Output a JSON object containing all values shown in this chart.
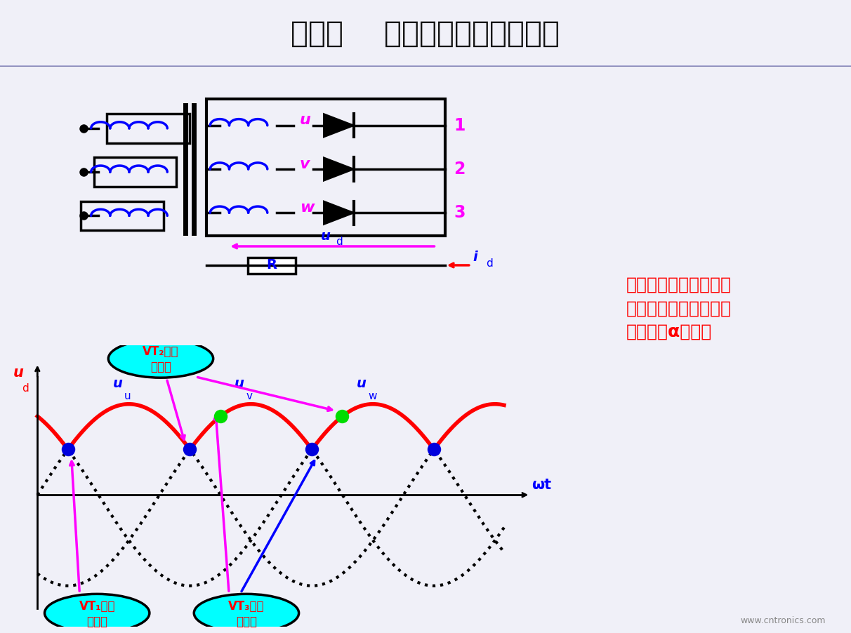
{
  "title": "第一节    三相半波可控整流电路",
  "bg_color": "#f0f0f8",
  "title_color": "#1a1a1a",
  "box_text_line1": "不可控整流电路的自然",
  "box_text_line2": "换相点就是可控整流电",
  "box_text_line3": "路控制角α的起点",
  "box_text_color": "#ff0000",
  "box_bg": "#d4c090",
  "box_border": "#008000",
  "cyan_color": "#00ffff",
  "phase_label_color_u": "#ff00ff",
  "phase_label_color_v": "#ff00ff",
  "phase_label_color_w": "#ff00ff",
  "num_color_1": "#ff00ff",
  "num_color_2": "#ff00ff",
  "num_color_3": "#ff00ff",
  "coil_color": "#0000ff",
  "ud_color": "#0000ff",
  "ud_arrow_color": "#ff00ff",
  "id_color": "#0000ff",
  "id_arrow_color": "#ff0000",
  "R_label_color": "#0000ff",
  "watermark": "www.cntronics.com"
}
